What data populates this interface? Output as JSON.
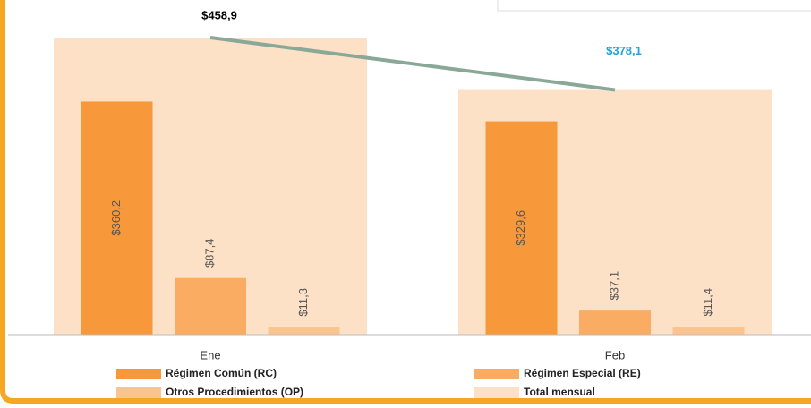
{
  "chart_data": {
    "type": "bar",
    "categories": [
      "Ene",
      "Feb"
    ],
    "ylim": [
      0,
      500
    ],
    "series": [
      {
        "name": "Régimen Común (RC)",
        "color": "#f7993b",
        "values": [
          360.2,
          329.6
        ],
        "value_labels": [
          "$360,2",
          "$329,6"
        ]
      },
      {
        "name": "Régimen Especial (RE)",
        "color": "#f9ac62",
        "values": [
          87.4,
          37.1
        ],
        "value_labels": [
          "$87,4",
          "$37,1"
        ]
      },
      {
        "name": "Otros Procedimientos (OP)",
        "color": "#fbc48f",
        "values": [
          11.3,
          11.4
        ],
        "value_labels": [
          "$11,3",
          "$11,4"
        ]
      },
      {
        "name": "Total mensual",
        "color": "#fde1c7",
        "line_color": "#8aa898",
        "values": [
          458.9,
          378.1
        ],
        "value_labels": [
          "$458,9",
          "$378,1"
        ],
        "label_colors": [
          "#000000",
          "#1fa3e0"
        ]
      }
    ]
  }
}
